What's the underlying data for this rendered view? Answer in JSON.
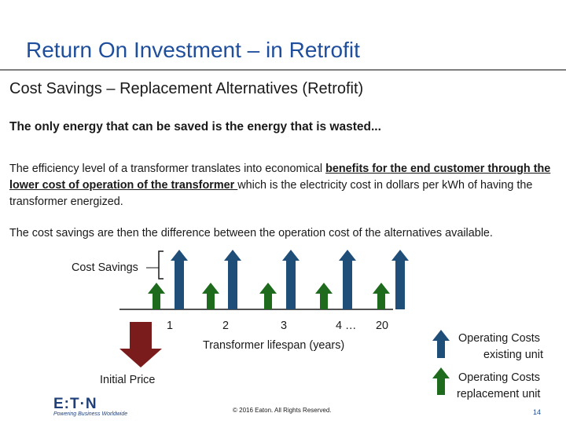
{
  "slide": {
    "title": "Return On Investment – in Retrofit",
    "subtitle": "Cost Savings – Replacement Alternatives (Retrofit)",
    "headline": "The only energy that can be saved is the energy that is wasted...",
    "para1": {
      "before": "The efficiency level of a transformer translates into economical ",
      "underlined": "benefits for the end customer through the lower cost of operation of the transformer ",
      "after": "which is the electricity cost in dollars per kWh of having the transformer energized."
    },
    "para2": "The cost savings are then the difference between the operation cost of the alternatives available.",
    "footer": "© 2016 Eaton. All Rights Reserved.",
    "page_number": "14",
    "logo": {
      "text": "E:T·N",
      "tagline": "Powering Business Worldwide"
    }
  },
  "diagram": {
    "cost_savings_label": "Cost Savings",
    "initial_price_label": "Initial Price",
    "year_ticks": [
      "1",
      "2",
      "3",
      "4 …",
      "20"
    ],
    "axis_label": "Transformer lifespan (years)",
    "legend": {
      "existing": "Operating Costs existing unit",
      "existing_line1": "Operating Costs",
      "existing_line2": "existing unit",
      "replacement_line1": "Operating Costs",
      "replacement_line2": "replacement unit"
    },
    "colors": {
      "existing_arrow": "#1f4e79",
      "replacement_arrow": "#1e6b1e",
      "initial_price_arrow": "#7b1c1c",
      "title": "#1f4e9c"
    }
  }
}
